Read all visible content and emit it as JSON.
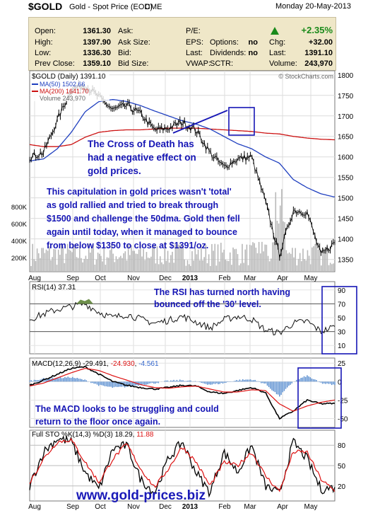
{
  "header": {
    "symbol": "$GOLD",
    "description": "Gold - Spot Price (EOD)",
    "exchange": "CME",
    "date": "Monday  20-May-2013"
  },
  "quote": {
    "labels_col1": [
      "Open:",
      "High:",
      "Low:",
      "Prev Close:"
    ],
    "values_col1": [
      "1361.30",
      "1397.90",
      "1336.30",
      "1359.10"
    ],
    "labels_col2": [
      "Ask:",
      "Ask Size:",
      "Bid:",
      "Bid Size:"
    ],
    "labels_col3": [
      "P/E:",
      "EPS:",
      "Last:",
      "VWAP:"
    ],
    "labels_col4": [
      "",
      "Options:",
      "Dividends:",
      "SCTR:"
    ],
    "values_col4": [
      "",
      "no",
      "no",
      ""
    ],
    "change_pct": "+2.35%",
    "labels_col5": [
      "Chg:",
      "Last:",
      "Volume:"
    ],
    "values_col5": [
      "+32.00",
      "1391.10",
      "243,970"
    ],
    "up_color": "#1a8a1a"
  },
  "watermark": "© StockCharts.com",
  "chart_data": [
    {
      "type": "line",
      "title": "$GOLD (Daily) 1391.10",
      "legend": [
        "MA(50) 1502.66",
        "MA(200) 1641.70",
        "Volume 243,970"
      ],
      "series": [
        {
          "name": "$GOLD (Daily) 1391.10",
          "color": "#000000",
          "x": [
            "Aug 1",
            "Aug 15",
            "Sep 1",
            "Sep 15",
            "Oct 1",
            "Oct 15",
            "Nov 1",
            "Nov 15",
            "Dec 1",
            "Dec 15",
            "Jan 1",
            "Jan 15",
            "Feb 1",
            "Feb 15",
            "Mar 1",
            "Mar 15",
            "Apr 1",
            "Apr 12",
            "Apr 16",
            "May 1",
            "May 10",
            "May 17",
            "May 20"
          ],
          "values": [
            1600,
            1610,
            1690,
            1765,
            1775,
            1745,
            1715,
            1725,
            1705,
            1665,
            1670,
            1685,
            1665,
            1610,
            1575,
            1595,
            1600,
            1490,
            1360,
            1470,
            1465,
            1360,
            1391
          ]
        },
        {
          "name": "MA(50) 1502.66",
          "color": "#1f3fbf",
          "values": [
            1590,
            1595,
            1620,
            1660,
            1710,
            1735,
            1740,
            1735,
            1725,
            1712,
            1700,
            1688,
            1680,
            1668,
            1650,
            1632,
            1620,
            1600,
            1585,
            1545,
            1525,
            1510,
            1502
          ]
        },
        {
          "name": "MA(200) 1641.70",
          "color": "#cc1111",
          "values": [
            1630,
            1625,
            1625,
            1630,
            1648,
            1660,
            1664,
            1666,
            1666,
            1668,
            1670,
            1670,
            1670,
            1668,
            1666,
            1664,
            1662,
            1658,
            1656,
            1650,
            1646,
            1643,
            1641.7
          ]
        }
      ],
      "y_ticks": [
        1350,
        1400,
        1450,
        1500,
        1550,
        1600,
        1650,
        1700,
        1750,
        1800
      ],
      "ylim": [
        1320,
        1810
      ],
      "volume_ticks": [
        "200K",
        "400K",
        "600K",
        "800K"
      ],
      "x_ticks": [
        "Aug",
        "Sep",
        "Oct",
        "Nov",
        "Dec",
        "2013",
        "Feb",
        "Mar",
        "Apr",
        "May"
      ]
    },
    {
      "type": "line",
      "title": "RSI(14) 37.31",
      "y_ticks": [
        10,
        30,
        50,
        70,
        90
      ],
      "ylim": [
        0,
        100
      ],
      "levels": [
        30,
        70
      ],
      "values": [
        48,
        55,
        62,
        66,
        70,
        58,
        50,
        55,
        48,
        42,
        46,
        52,
        44,
        35,
        47,
        52,
        48,
        32,
        28,
        42,
        45,
        30,
        37.31
      ]
    },
    {
      "type": "line",
      "title": "MACD(12,26,9) -29.491, -24.930, -4.561",
      "y_ticks": [
        -50,
        -25,
        0,
        25
      ],
      "ylim": [
        -60,
        30
      ],
      "macd": [
        -5,
        2,
        10,
        18,
        20,
        10,
        0,
        -5,
        -8,
        -10,
        -8,
        -5,
        -6,
        -14,
        -16,
        -12,
        -8,
        -15,
        -50,
        -40,
        -25,
        -30,
        -29.491
      ],
      "signal": [
        -6,
        -2,
        5,
        12,
        18,
        15,
        8,
        2,
        -4,
        -8,
        -9,
        -7,
        -6,
        -10,
        -14,
        -14,
        -11,
        -12,
        -30,
        -40,
        -33,
        -28,
        -24.93
      ]
    },
    {
      "type": "line",
      "title": "Full STO %K(14,3) %D(3) 18.29, 11.88",
      "y_ticks": [
        20,
        50,
        80
      ],
      "ylim": [
        0,
        100
      ],
      "k": [
        20,
        70,
        90,
        85,
        40,
        15,
        75,
        80,
        30,
        10,
        60,
        85,
        40,
        10,
        70,
        40,
        80,
        20,
        8,
        85,
        60,
        15,
        18.29
      ],
      "d": [
        25,
        60,
        85,
        88,
        55,
        25,
        60,
        82,
        45,
        18,
        45,
        78,
        55,
        20,
        55,
        50,
        70,
        35,
        12,
        70,
        70,
        30,
        11.88
      ],
      "x_ticks": [
        "Aug",
        "Sep",
        "Oct",
        "Nov",
        "Dec",
        "2013",
        "Feb",
        "Mar",
        "Apr",
        "May"
      ]
    }
  ],
  "annotations": {
    "cross": [
      "The Cross of Death has",
      "had a negative effect on",
      "gold prices."
    ],
    "capitulation": [
      "This capitulation in gold prices wasn't 'total'",
      "as gold rallied and tried to break through",
      "$1500 and challenge the 50dma. Gold then fell",
      "again until today, when it managed to bounce",
      "from below $1350 to close at $1391/oz."
    ],
    "rsi": [
      "The RSI has turned north having",
      "bounced off the '30' level."
    ],
    "macd": [
      "The MACD looks to be struggling and could",
      "return to the floor once again."
    ],
    "url": "www.gold-prices.biz",
    "color": "#1515b5"
  }
}
